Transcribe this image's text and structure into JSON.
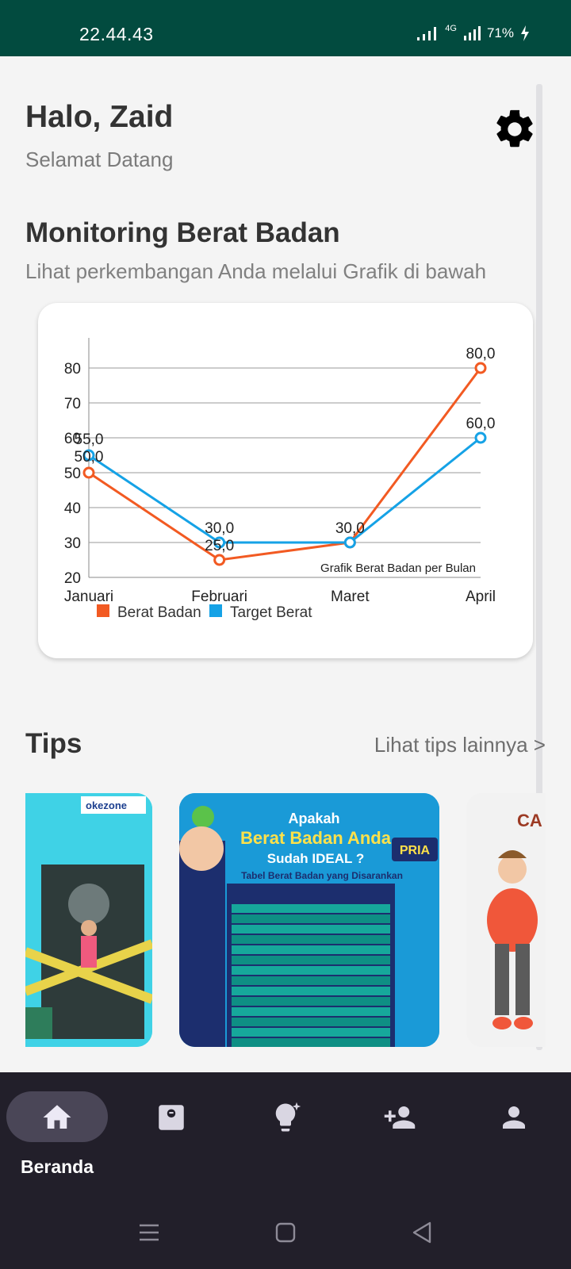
{
  "status_bar": {
    "time": "22.44.43",
    "network": "4G",
    "battery": "71%"
  },
  "header": {
    "greeting": "Halo, Zaid",
    "subtitle": "Selamat Datang"
  },
  "monitoring": {
    "title": "Monitoring Berat Badan",
    "subtitle": "Lihat perkembangan Anda melalui Grafik di bawah"
  },
  "chart_data": {
    "type": "line",
    "categories": [
      "Januari",
      "Februari",
      "Maret",
      "April"
    ],
    "series": [
      {
        "name": "Berat Badan",
        "values": [
          50,
          25,
          30,
          80
        ],
        "labels": [
          "50,0",
          "25,0",
          "30,0",
          "80,0"
        ],
        "color": "#f25a22"
      },
      {
        "name": "Target Berat",
        "values": [
          55,
          30,
          30,
          60
        ],
        "labels": [
          "55,0",
          "30,0",
          "30,0",
          "60,0"
        ],
        "color": "#15a2e6"
      }
    ],
    "yticks": [
      20,
      30,
      40,
      50,
      60,
      70,
      80
    ],
    "ylim": [
      20,
      85
    ],
    "description": "Grafik Berat Badan per Bulan",
    "grid": true,
    "legend": "bottom-left"
  },
  "tips": {
    "title": "Tips",
    "more_label": "Lihat tips lainnya >",
    "cards": [
      {
        "brand": "okezone"
      },
      {
        "title_line1": "Apakah",
        "title_line2": "Berat Badan Anda",
        "title_line3": "Sudah IDEAL ?",
        "badge": "PRIA",
        "table_title": "Tabel Berat Badan yang Disarankan"
      },
      {
        "caption": "CA"
      }
    ]
  },
  "bottom_nav": {
    "items": [
      {
        "label": "Beranda",
        "icon": "home-icon",
        "active": true
      },
      {
        "label": "",
        "icon": "scale-icon",
        "active": false
      },
      {
        "label": "",
        "icon": "lightbulb-icon",
        "active": false
      },
      {
        "label": "",
        "icon": "add-person-icon",
        "active": false
      },
      {
        "label": "",
        "icon": "person-icon",
        "active": false
      }
    ]
  },
  "colors": {
    "status_bar": "#024b3f",
    "nav_bg": "#221f2a",
    "series_1": "#f25a22",
    "series_2": "#15a2e6"
  }
}
